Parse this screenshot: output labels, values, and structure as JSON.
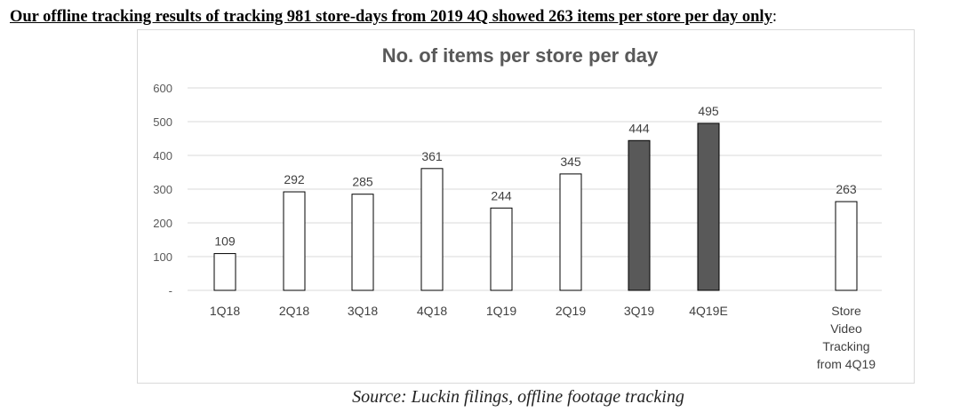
{
  "header": {
    "text": "Our offline tracking results of tracking 981 store-days from 2019 4Q showed 263 items per store per day only",
    "trailing": ":"
  },
  "footer": {
    "source": "Source: Luckin filings, offline footage tracking"
  },
  "colors": {
    "bar_fill_default": "#ffffff",
    "bar_fill_highlight": "#595959",
    "bar_stroke": "#000000",
    "grid": "#d9d9d9"
  },
  "chart_data": {
    "type": "bar",
    "title": "No. of items per store per day",
    "xlabel": "",
    "ylabel": "",
    "ylim": [
      0,
      600
    ],
    "yticks": [
      0,
      100,
      200,
      300,
      400,
      500,
      600
    ],
    "ytick_labels": [
      "-",
      "100",
      "200",
      "300",
      "400",
      "500",
      "600"
    ],
    "grid": true,
    "categories": [
      "1Q18",
      "2Q18",
      "3Q18",
      "4Q18",
      "1Q19",
      "2Q19",
      "3Q19",
      "4Q19E",
      "Store Video Tracking from 4Q19"
    ],
    "category_lines": [
      [
        "1Q18"
      ],
      [
        "2Q18"
      ],
      [
        "3Q18"
      ],
      [
        "4Q18"
      ],
      [
        "1Q19"
      ],
      [
        "2Q19"
      ],
      [
        "3Q19"
      ],
      [
        "4Q19E"
      ],
      [
        "Store",
        "Video",
        "Tracking",
        "from 4Q19"
      ]
    ],
    "values": [
      109,
      292,
      285,
      361,
      244,
      345,
      444,
      495,
      263
    ],
    "highlighted": [
      false,
      false,
      false,
      false,
      false,
      false,
      true,
      true,
      false
    ],
    "data_labels": [
      "109",
      "292",
      "285",
      "361",
      "244",
      "345",
      "444",
      "495",
      "263"
    ]
  }
}
